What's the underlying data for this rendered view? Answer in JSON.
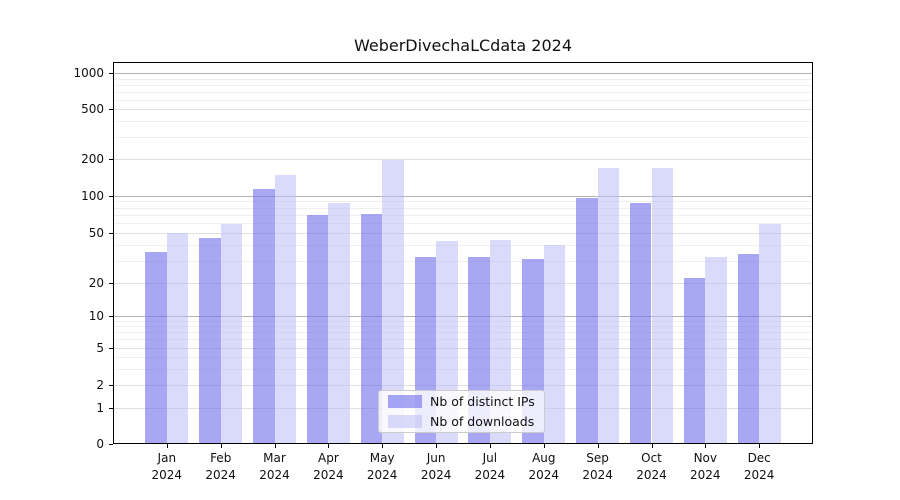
{
  "chart_data": {
    "type": "bar",
    "title": "WeberDivechaLCdata 2024",
    "categories": [
      "Jan 2024",
      "Feb 2024",
      "Mar 2024",
      "Apr 2024",
      "May 2024",
      "Jun 2024",
      "Jul 2024",
      "Aug 2024",
      "Sep 2024",
      "Oct 2024",
      "Nov 2024",
      "Dec 2024"
    ],
    "series": [
      {
        "name": "Nb of distinct IPs",
        "color": "rgba(113,113,238,0.62)",
        "values": [
          35,
          45,
          114,
          70,
          71,
          32,
          32,
          31,
          95,
          88,
          22,
          34
        ]
      },
      {
        "name": "Nb of downloads",
        "color": "rgba(187,187,246,0.55)",
        "values": [
          50,
          59,
          147,
          87,
          195,
          43,
          44,
          40,
          168,
          168,
          32,
          59
        ]
      }
    ],
    "xlabel": "",
    "ylabel": "",
    "yscale": "symlog",
    "yticks": [
      0,
      1,
      2,
      5,
      10,
      20,
      50,
      100,
      200,
      500,
      1000
    ],
    "ylim": [
      0,
      1200
    ],
    "grid": true,
    "legend_position": "lower center",
    "colors": {
      "bar_ips_hex": "#a7a7f4",
      "bar_downloads_hex": "#dadaf9",
      "grid_major": "#b3b3b3",
      "grid_labeled": "#e0e0e0",
      "grid_minor": "#f0f0f0",
      "axis": "#000000",
      "background": "#ffffff"
    }
  }
}
